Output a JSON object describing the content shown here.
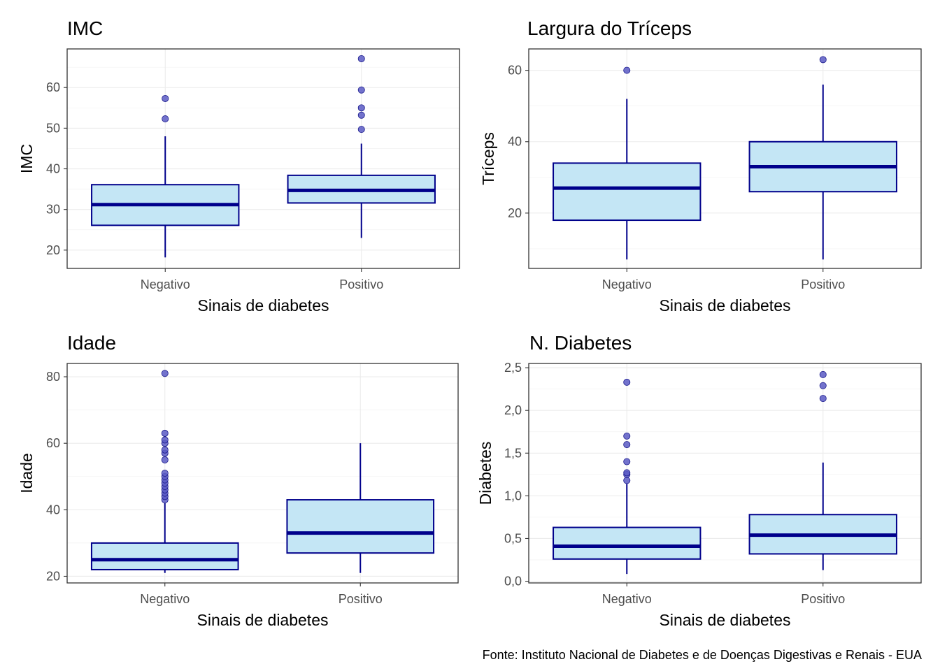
{
  "caption": "Fonte: Instituto Nacional de Diabetes e de Doenças Digestivas e Renais - EUA",
  "colors": {
    "box_fill": "#c4e6f5",
    "box_stroke": "#00008b",
    "outlier_fill": "#5b5bc4"
  },
  "chart_data": [
    {
      "type": "box",
      "title": "IMC",
      "xlabel": "Sinais de diabetes",
      "ylabel": "IMC",
      "categories": [
        "Negativo",
        "Positivo"
      ],
      "ylim": [
        15.5,
        69.5
      ],
      "yticks": [
        20,
        30,
        40,
        50,
        60
      ],
      "ytick_labels": [
        "20",
        "30",
        "40",
        "50",
        "60"
      ],
      "boxes": [
        {
          "category": "Negativo",
          "whisker_low": 18.2,
          "q1": 26.1,
          "median": 31.2,
          "q3": 36.1,
          "whisker_high": 48.0,
          "outliers": [
            52.3,
            57.3
          ]
        },
        {
          "category": "Positivo",
          "whisker_low": 23.0,
          "q1": 31.6,
          "median": 34.7,
          "q3": 38.4,
          "whisker_high": 46.2,
          "outliers": [
            49.7,
            53.2,
            55.0,
            59.4,
            67.1
          ]
        }
      ]
    },
    {
      "type": "box",
      "title": "Largura do Tríceps",
      "xlabel": "Sinais de diabetes",
      "ylabel": "Tríceps",
      "categories": [
        "Negativo",
        "Positivo"
      ],
      "ylim": [
        4.5,
        66.0
      ],
      "yticks": [
        20,
        40,
        60
      ],
      "ytick_labels": [
        "20",
        "40",
        "60"
      ],
      "boxes": [
        {
          "category": "Negativo",
          "whisker_low": 7,
          "q1": 18,
          "median": 27,
          "q3": 34,
          "whisker_high": 52,
          "outliers": [
            60
          ]
        },
        {
          "category": "Positivo",
          "whisker_low": 7,
          "q1": 26,
          "median": 33,
          "q3": 40,
          "whisker_high": 56,
          "outliers": [
            63
          ]
        }
      ]
    },
    {
      "type": "box",
      "title": "Idade",
      "xlabel": "Sinais de diabetes",
      "ylabel": "Idade",
      "categories": [
        "Negativo",
        "Positivo"
      ],
      "ylim": [
        18.0,
        84.0
      ],
      "yticks": [
        20,
        40,
        60,
        80
      ],
      "ytick_labels": [
        "20",
        "40",
        "60",
        "80"
      ],
      "boxes": [
        {
          "category": "Negativo",
          "whisker_low": 21,
          "q1": 22,
          "median": 25,
          "q3": 30,
          "whisker_high": 42,
          "outliers": [
            43,
            44,
            45,
            46,
            47,
            48,
            49,
            50,
            51,
            55,
            57,
            58,
            60,
            61,
            63,
            81
          ]
        },
        {
          "category": "Positivo",
          "whisker_low": 21,
          "q1": 27,
          "median": 33,
          "q3": 43,
          "whisker_high": 60,
          "outliers": []
        }
      ]
    },
    {
      "type": "box",
      "title": "N. Diabetes",
      "xlabel": "Sinais de diabetes",
      "ylabel": "Diabetes",
      "categories": [
        "Negativo",
        "Positivo"
      ],
      "ylim": [
        -0.02,
        2.55
      ],
      "yticks": [
        0.0,
        0.5,
        1.0,
        1.5,
        2.0,
        2.5
      ],
      "ytick_labels": [
        "0,0",
        "0,5",
        "1,0",
        "1,5",
        "2,0",
        "2,5"
      ],
      "boxes": [
        {
          "category": "Negativo",
          "whisker_low": 0.085,
          "q1": 0.26,
          "median": 0.41,
          "q3": 0.63,
          "whisker_high": 1.14,
          "outliers": [
            1.18,
            1.25,
            1.27,
            1.4,
            1.6,
            1.7,
            2.33
          ]
        },
        {
          "category": "Positivo",
          "whisker_low": 0.13,
          "q1": 0.32,
          "median": 0.54,
          "q3": 0.78,
          "whisker_high": 1.39,
          "outliers": [
            2.14,
            2.29,
            2.42
          ]
        }
      ]
    }
  ]
}
